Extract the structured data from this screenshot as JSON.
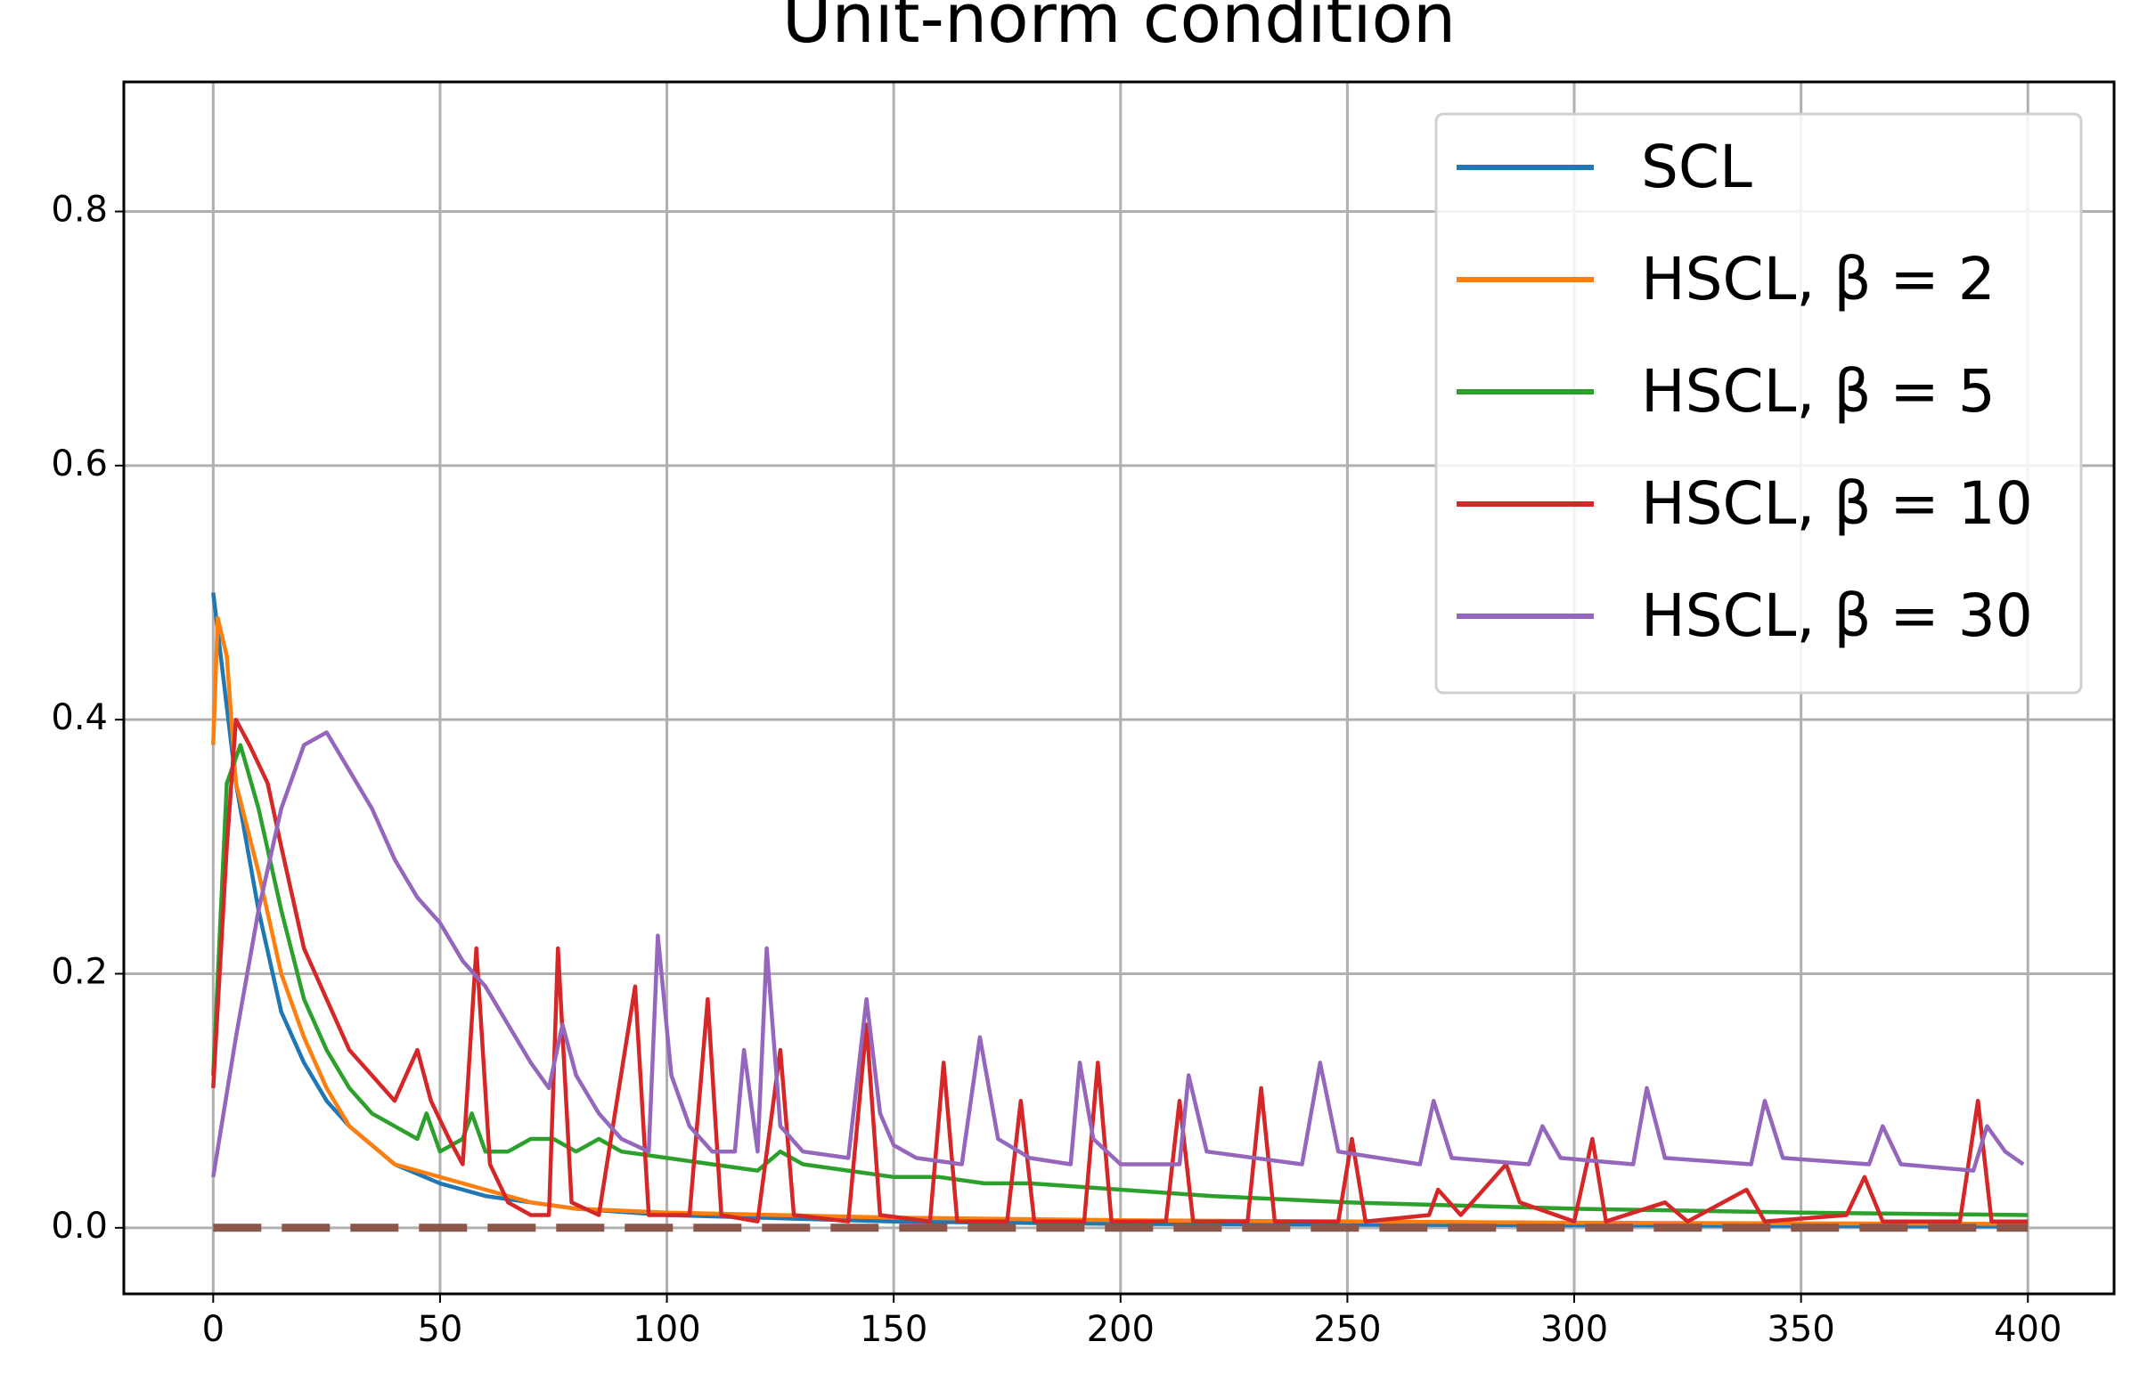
{
  "chart_data": {
    "type": "line",
    "title": "Unit-norm condition",
    "xlim": [
      -19.7,
      419
    ],
    "ylim": [
      -0.052,
      0.902
    ],
    "xticks": [
      0,
      50,
      100,
      150,
      200,
      250,
      300,
      350,
      400
    ],
    "yticks": [
      {
        "value": 0,
        "label": "0.0"
      },
      0.2,
      0.4,
      0.6,
      0.8
    ],
    "grid": true,
    "legend": "upper right",
    "series": [
      {
        "name": "SCL",
        "color": "#1f77b4",
        "x": [
          0,
          5,
          10,
          15,
          20,
          25,
          30,
          40,
          50,
          60,
          70,
          80,
          100,
          150,
          200,
          300,
          400
        ],
        "values": [
          0.5,
          0.35,
          0.25,
          0.17,
          0.13,
          0.1,
          0.08,
          0.05,
          0.035,
          0.025,
          0.02,
          0.015,
          0.01,
          0.005,
          0.003,
          0.002,
          0.001
        ]
      },
      {
        "name": "HSCL, β = 2",
        "color": "#ff7f0e",
        "x": [
          0,
          1,
          3,
          5,
          10,
          15,
          20,
          25,
          30,
          40,
          50,
          60,
          70,
          80,
          100,
          150,
          200,
          300,
          400
        ],
        "values": [
          0.38,
          0.48,
          0.45,
          0.35,
          0.28,
          0.2,
          0.15,
          0.11,
          0.08,
          0.05,
          0.04,
          0.03,
          0.02,
          0.015,
          0.012,
          0.008,
          0.006,
          0.004,
          0.003
        ]
      },
      {
        "name": "HSCL, β = 5",
        "color": "#2ca02c",
        "x": [
          0,
          3,
          6,
          10,
          15,
          20,
          25,
          30,
          35,
          40,
          45,
          47,
          50,
          55,
          57,
          60,
          65,
          70,
          75,
          80,
          85,
          90,
          100,
          110,
          120,
          125,
          130,
          140,
          150,
          160,
          170,
          180,
          200,
          220,
          250,
          300,
          350,
          400
        ],
        "values": [
          0.12,
          0.35,
          0.38,
          0.33,
          0.25,
          0.18,
          0.14,
          0.11,
          0.09,
          0.08,
          0.07,
          0.09,
          0.06,
          0.07,
          0.09,
          0.06,
          0.06,
          0.07,
          0.07,
          0.06,
          0.07,
          0.06,
          0.055,
          0.05,
          0.045,
          0.06,
          0.05,
          0.045,
          0.04,
          0.04,
          0.035,
          0.035,
          0.03,
          0.025,
          0.02,
          0.015,
          0.012,
          0.01
        ]
      },
      {
        "name": "HSCL, β = 10",
        "color": "#d62728",
        "x": [
          0,
          3,
          5,
          8,
          12,
          15,
          20,
          25,
          30,
          35,
          40,
          45,
          48,
          52,
          55,
          58,
          61,
          65,
          70,
          74,
          76,
          79,
          85,
          93,
          96,
          105,
          109,
          112,
          120,
          125,
          128,
          140,
          144,
          147,
          158,
          161,
          164,
          175,
          178,
          181,
          192,
          195,
          198,
          210,
          213,
          216,
          228,
          231,
          234,
          248,
          251,
          254,
          268,
          270,
          275,
          285,
          288,
          300,
          304,
          307,
          320,
          325,
          338,
          342,
          360,
          364,
          368,
          385,
          389,
          392,
          400
        ],
        "values": [
          0.11,
          0.3,
          0.4,
          0.38,
          0.35,
          0.3,
          0.22,
          0.18,
          0.14,
          0.12,
          0.1,
          0.14,
          0.1,
          0.07,
          0.05,
          0.22,
          0.05,
          0.02,
          0.01,
          0.01,
          0.22,
          0.02,
          0.01,
          0.19,
          0.01,
          0.01,
          0.18,
          0.01,
          0.005,
          0.14,
          0.01,
          0.005,
          0.16,
          0.01,
          0.005,
          0.13,
          0.005,
          0.005,
          0.1,
          0.005,
          0.005,
          0.13,
          0.005,
          0.005,
          0.1,
          0.005,
          0.005,
          0.11,
          0.005,
          0.005,
          0.07,
          0.005,
          0.01,
          0.03,
          0.01,
          0.05,
          0.02,
          0.005,
          0.07,
          0.005,
          0.02,
          0.005,
          0.03,
          0.005,
          0.01,
          0.04,
          0.005,
          0.005,
          0.1,
          0.005,
          0.005
        ]
      },
      {
        "name": "HSCL, β = 30",
        "color": "#9467bd",
        "x": [
          0,
          5,
          10,
          15,
          20,
          25,
          30,
          35,
          40,
          45,
          50,
          55,
          60,
          65,
          70,
          74,
          77,
          80,
          85,
          90,
          96,
          98,
          101,
          105,
          110,
          115,
          117,
          120,
          122,
          125,
          130,
          140,
          144,
          147,
          150,
          155,
          165,
          169,
          173,
          180,
          189,
          191,
          194,
          200,
          213,
          215,
          219,
          240,
          244,
          248,
          266,
          269,
          273,
          290,
          293,
          297,
          313,
          316,
          320,
          339,
          342,
          346,
          365,
          368,
          372,
          388,
          391,
          395,
          399
        ],
        "values": [
          0.04,
          0.15,
          0.25,
          0.33,
          0.38,
          0.39,
          0.36,
          0.33,
          0.29,
          0.26,
          0.24,
          0.21,
          0.19,
          0.16,
          0.13,
          0.11,
          0.16,
          0.12,
          0.09,
          0.07,
          0.06,
          0.23,
          0.12,
          0.08,
          0.06,
          0.06,
          0.14,
          0.06,
          0.22,
          0.08,
          0.06,
          0.055,
          0.18,
          0.09,
          0.065,
          0.055,
          0.05,
          0.15,
          0.07,
          0.055,
          0.05,
          0.13,
          0.07,
          0.05,
          0.05,
          0.12,
          0.06,
          0.05,
          0.13,
          0.06,
          0.05,
          0.1,
          0.055,
          0.05,
          0.08,
          0.055,
          0.05,
          0.11,
          0.055,
          0.05,
          0.1,
          0.055,
          0.05,
          0.08,
          0.05,
          0.045,
          0.08,
          0.06,
          0.05
        ]
      },
      {
        "color": "#8c564b",
        "linestyle": "dashed",
        "x": [
          0,
          400
        ],
        "values": [
          0,
          0
        ]
      }
    ]
  }
}
